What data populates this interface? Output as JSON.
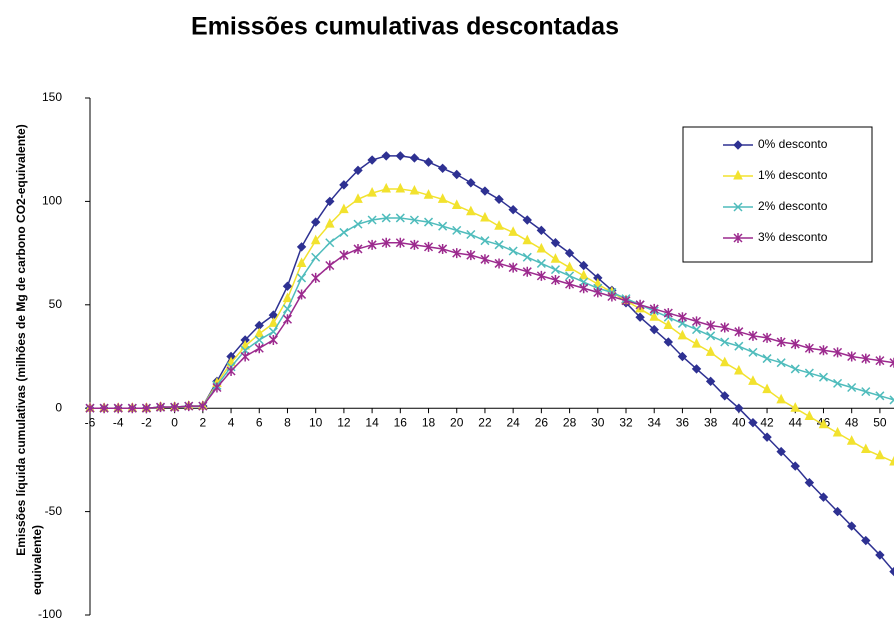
{
  "chart_data": {
    "type": "line",
    "title": "Emissões cumulativas descontadas",
    "ylabel": "Emissões líquida cumulativas (milhões de  Mg de carbono CO2-equivalente)",
    "ylabel_fragment": "equivalente)",
    "x": [
      -6,
      -5,
      -4,
      -3,
      -2,
      -1,
      0,
      1,
      2,
      3,
      4,
      5,
      6,
      7,
      8,
      9,
      10,
      11,
      12,
      13,
      14,
      15,
      16,
      17,
      18,
      19,
      20,
      21,
      22,
      23,
      24,
      25,
      26,
      27,
      28,
      29,
      30,
      31,
      32,
      33,
      34,
      35,
      36,
      37,
      38,
      39,
      40,
      41,
      42,
      43,
      44,
      45,
      46,
      47,
      48,
      49,
      50,
      51
    ],
    "series": [
      {
        "name": "0% desconto",
        "color": "#2e3192",
        "marker": "diamond",
        "values": [
          0,
          0,
          0,
          0,
          0,
          0.5,
          0.5,
          1,
          1,
          13,
          25,
          33,
          40,
          45,
          59,
          78,
          90,
          100,
          108,
          115,
          120,
          122,
          122,
          121,
          119,
          116,
          113,
          109,
          105,
          101,
          96,
          91,
          86,
          80,
          75,
          69,
          63,
          57,
          51,
          44,
          38,
          32,
          25,
          19,
          13,
          6,
          0,
          -7,
          -14,
          -21,
          -28,
          -36,
          -43,
          -50,
          -57,
          -64,
          -71,
          -79
        ]
      },
      {
        "name": "1% desconto",
        "color": "#f2e22e",
        "marker": "triangle",
        "values": [
          0,
          0,
          0,
          0,
          0,
          0.5,
          0.5,
          1,
          1,
          12,
          22,
          30,
          36,
          41,
          53,
          70,
          81,
          89,
          96,
          101,
          104,
          106,
          106,
          105,
          103,
          101,
          98,
          95,
          92,
          88,
          85,
          81,
          77,
          72,
          68,
          64,
          60,
          56,
          52,
          48,
          44,
          40,
          35,
          31,
          27,
          22,
          18,
          13,
          9,
          4,
          0,
          -4,
          -8,
          -12,
          -16,
          -20,
          -23,
          -26
        ]
      },
      {
        "name": "2% desconto",
        "color": "#4fbcbc",
        "marker": "x",
        "values": [
          0,
          0,
          0,
          0,
          0,
          0.5,
          0.5,
          1,
          1,
          11,
          20,
          28,
          33,
          37,
          48,
          63,
          73,
          80,
          85,
          89,
          91,
          92,
          92,
          91,
          90,
          88,
          86,
          84,
          81,
          79,
          76,
          73,
          70,
          67,
          64,
          61,
          58,
          56,
          53,
          50,
          47,
          44,
          41,
          38,
          35,
          32,
          30,
          27,
          24,
          22,
          19,
          17,
          15,
          12,
          10,
          8,
          6,
          4
        ]
      },
      {
        "name": "3% desconto",
        "color": "#9c2a8e",
        "marker": "star",
        "values": [
          0,
          0,
          0,
          0,
          0,
          0.5,
          0.5,
          1,
          1,
          10,
          18,
          25,
          29,
          33,
          43,
          55,
          63,
          69,
          74,
          77,
          79,
          80,
          80,
          79,
          78,
          77,
          75,
          74,
          72,
          70,
          68,
          66,
          64,
          62,
          60,
          58,
          56,
          54,
          52,
          50,
          48,
          46,
          44,
          42,
          40,
          39,
          37,
          35,
          34,
          32,
          31,
          29,
          28,
          27,
          25,
          24,
          23,
          22
        ]
      }
    ],
    "xlim": [
      -6,
      51
    ],
    "xticks": [
      -6,
      -4,
      -2,
      0,
      2,
      4,
      6,
      8,
      10,
      12,
      14,
      16,
      18,
      20,
      22,
      24,
      26,
      28,
      30,
      32,
      34,
      36,
      38,
      40,
      42,
      44,
      46,
      48,
      50
    ],
    "ylim": [
      -100,
      150
    ],
    "yticks": [
      -100,
      -50,
      0,
      50,
      100,
      150
    ],
    "legend_position": "upper right"
  }
}
